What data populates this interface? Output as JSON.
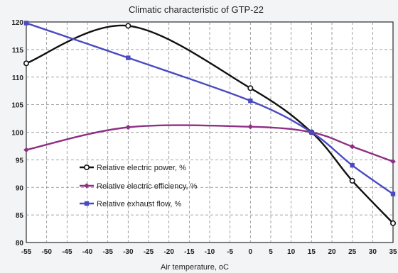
{
  "chart_data": {
    "type": "line",
    "title": "Climatic characteristic of GTP-22",
    "xlabel": "Air temperature, oC",
    "ylabel": "",
    "xlim": [
      -55,
      35
    ],
    "ylim": [
      80,
      120
    ],
    "xticks": [
      -55,
      -50,
      -45,
      -40,
      -35,
      -30,
      -25,
      -20,
      -15,
      -10,
      -5,
      0,
      5,
      10,
      15,
      20,
      25,
      30,
      35
    ],
    "yticks": [
      80,
      85,
      90,
      95,
      100,
      105,
      110,
      115,
      120
    ],
    "grid": true,
    "legend_position": "lower-left",
    "series": [
      {
        "name": "Relative electric power, %",
        "color": "#111111",
        "marker": "circle",
        "x": [
          -55,
          -30,
          0,
          15,
          25,
          35
        ],
        "y": [
          112.5,
          119.3,
          108.0,
          100.0,
          91.2,
          83.5
        ]
      },
      {
        "name": "Relative electric efficiency, %",
        "color": "#8e2f84",
        "marker": "diamond",
        "x": [
          -55,
          -30,
          0,
          15,
          25,
          35
        ],
        "y": [
          96.8,
          100.9,
          101.0,
          100.0,
          97.4,
          94.7
        ]
      },
      {
        "name": "Relative exhaust flow, %",
        "color": "#4a4ac4",
        "marker": "square",
        "x": [
          -55,
          -30,
          0,
          15,
          25,
          35
        ],
        "y": [
          119.8,
          113.5,
          105.7,
          100.0,
          94.0,
          88.8
        ]
      }
    ]
  }
}
